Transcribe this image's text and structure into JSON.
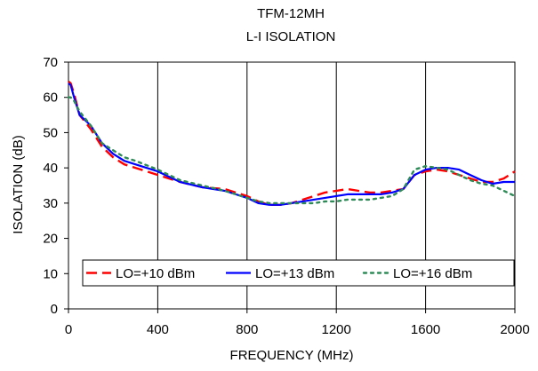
{
  "chart_data": {
    "type": "line",
    "title": "TFM-12MH",
    "subtitle": "L-I ISOLATION",
    "xlabel": "FREQUENCY (MHz)",
    "ylabel": "ISOLATION (dB)",
    "xlim": [
      0,
      2000
    ],
    "ylim": [
      0,
      70
    ],
    "x_ticks": [
      0,
      400,
      800,
      1200,
      1600,
      2000
    ],
    "y_ticks": [
      0,
      10,
      20,
      30,
      40,
      50,
      60,
      70
    ],
    "x_tick_labels": [
      "0",
      "400",
      "800",
      "1200",
      "1600",
      "2000"
    ],
    "y_tick_labels": [
      "0",
      "10",
      "20",
      "30",
      "40",
      "50",
      "60",
      "70"
    ],
    "grid": "vertical",
    "legend": "bottom-inside",
    "series": [
      {
        "name": "LO=+10 dBm",
        "color": "#ff0000",
        "style": "dashed",
        "x": [
          0,
          10,
          25,
          50,
          75,
          100,
          150,
          200,
          250,
          300,
          400,
          500,
          600,
          700,
          800,
          850,
          900,
          950,
          1000,
          1050,
          1100,
          1150,
          1200,
          1250,
          1300,
          1350,
          1400,
          1450,
          1500,
          1550,
          1600,
          1650,
          1700,
          1750,
          1800,
          1850,
          1900,
          1950,
          2000
        ],
        "y": [
          64.5,
          64,
          61,
          55,
          53,
          51,
          46,
          43,
          41,
          40,
          38,
          36,
          34.5,
          34,
          32,
          30.5,
          29.5,
          29.5,
          30,
          31,
          32,
          33,
          33.5,
          34,
          33.5,
          33,
          33,
          33.5,
          34,
          38,
          39,
          39.5,
          39,
          38,
          37,
          36,
          36,
          37,
          39
        ]
      },
      {
        "name": "LO=+13 dBm",
        "color": "#0000ff",
        "style": "solid",
        "x": [
          0,
          10,
          25,
          50,
          75,
          100,
          150,
          200,
          250,
          300,
          400,
          500,
          600,
          700,
          800,
          850,
          900,
          950,
          1000,
          1050,
          1100,
          1150,
          1200,
          1250,
          1300,
          1350,
          1400,
          1450,
          1500,
          1550,
          1600,
          1650,
          1700,
          1750,
          1800,
          1850,
          1900,
          1950,
          2000
        ],
        "y": [
          64,
          63.5,
          60,
          55,
          53.5,
          52,
          47,
          44,
          42,
          41,
          39,
          36,
          34.5,
          33.5,
          31.5,
          30,
          29.5,
          29.5,
          30,
          30.5,
          31,
          31.5,
          32,
          32.5,
          32.5,
          32.5,
          32.5,
          33,
          34,
          38,
          39.5,
          40,
          40,
          39.5,
          38,
          36.5,
          35.5,
          36,
          36
        ]
      },
      {
        "name": "LO=+16 dBm",
        "color": "#2e8b57",
        "style": "dotted",
        "x": [
          0,
          10,
          25,
          50,
          75,
          100,
          150,
          200,
          250,
          300,
          400,
          500,
          600,
          700,
          800,
          850,
          900,
          950,
          1000,
          1050,
          1100,
          1150,
          1200,
          1250,
          1300,
          1350,
          1400,
          1450,
          1500,
          1550,
          1600,
          1650,
          1700,
          1750,
          1800,
          1850,
          1900,
          1950,
          2000
        ],
        "y": [
          60,
          60,
          59,
          56,
          54,
          52,
          47,
          45,
          43,
          42,
          39.5,
          36.5,
          35,
          33.5,
          31.5,
          30.5,
          30,
          30,
          30,
          30,
          30,
          30.5,
          30.5,
          31,
          31,
          31,
          31.5,
          32,
          34,
          39.5,
          40.5,
          40,
          39.5,
          38,
          36.5,
          35.5,
          35,
          33.5,
          32
        ]
      }
    ]
  }
}
